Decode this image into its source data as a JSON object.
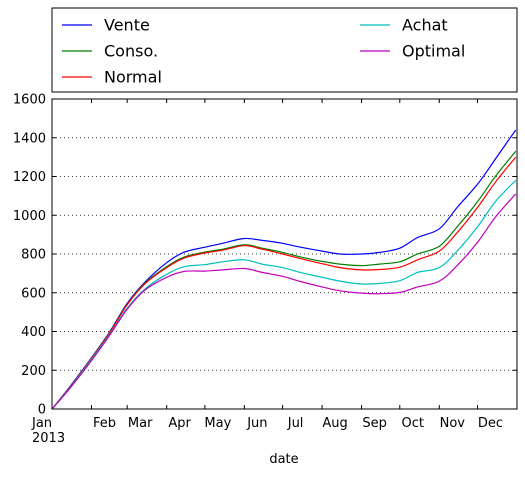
{
  "chart_data": {
    "type": "line",
    "title": "",
    "xlabel": "date",
    "ylabel": "",
    "ylim": [
      0,
      1600
    ],
    "yticks": [
      0,
      200,
      400,
      600,
      800,
      1000,
      1200,
      1400,
      1600
    ],
    "xlim": [
      "2013-01-01",
      "2014-01-01"
    ],
    "x_tick_labels": [
      {
        "date": "2013-01-01",
        "label": "Jan",
        "sublabel": "2013"
      },
      {
        "date": "2013-02-01",
        "label": "Feb"
      },
      {
        "date": "2013-03-01",
        "label": "Mar"
      },
      {
        "date": "2013-04-01",
        "label": "Apr"
      },
      {
        "date": "2013-05-01",
        "label": "May"
      },
      {
        "date": "2013-06-01",
        "label": "Jun"
      },
      {
        "date": "2013-07-01",
        "label": "Jul"
      },
      {
        "date": "2013-08-01",
        "label": "Aug"
      },
      {
        "date": "2013-09-01",
        "label": "Sep"
      },
      {
        "date": "2013-10-01",
        "label": "Oct"
      },
      {
        "date": "2013-11-01",
        "label": "Nov"
      },
      {
        "date": "2013-12-01",
        "label": "Dec"
      }
    ],
    "grid": "horizontal dotted",
    "legend_placement": "top, above plot, two columns",
    "x": [
      "2013-01-01",
      "2013-01-15",
      "2013-02-01",
      "2013-02-15",
      "2013-03-01",
      "2013-03-15",
      "2013-04-01",
      "2013-04-15",
      "2013-05-01",
      "2013-05-15",
      "2013-06-01",
      "2013-06-15",
      "2013-07-01",
      "2013-07-15",
      "2013-08-01",
      "2013-08-15",
      "2013-09-01",
      "2013-09-15",
      "2013-10-01",
      "2013-10-15",
      "2013-11-01",
      "2013-11-15",
      "2013-12-01",
      "2013-12-15",
      "2013-12-31"
    ],
    "series": [
      {
        "name": "Vente",
        "color": "#0000ff",
        "values": [
          0,
          115,
          265,
          395,
          545,
          655,
          755,
          810,
          835,
          855,
          880,
          870,
          855,
          835,
          815,
          800,
          800,
          808,
          830,
          885,
          930,
          1040,
          1160,
          1290,
          1440
        ]
      },
      {
        "name": "Conso.",
        "color": "#008000",
        "values": [
          0,
          112,
          262,
          392,
          540,
          650,
          735,
          785,
          810,
          825,
          848,
          830,
          808,
          785,
          762,
          748,
          740,
          748,
          760,
          800,
          840,
          940,
          1070,
          1200,
          1330
        ]
      },
      {
        "name": "Normal",
        "color": "#ff0000",
        "values": [
          0,
          110,
          260,
          390,
          538,
          646,
          730,
          780,
          805,
          820,
          843,
          825,
          800,
          776,
          750,
          730,
          718,
          720,
          732,
          770,
          815,
          910,
          1040,
          1170,
          1300
        ]
      },
      {
        "name": "Achat",
        "color": "#00bfbf",
        "values": [
          0,
          108,
          255,
          382,
          520,
          620,
          695,
          735,
          745,
          760,
          770,
          748,
          730,
          705,
          680,
          660,
          645,
          648,
          662,
          705,
          730,
          815,
          940,
          1070,
          1180
        ]
      },
      {
        "name": "Optimal",
        "color": "#bf00bf",
        "values": [
          0,
          106,
          250,
          378,
          515,
          614,
          680,
          710,
          712,
          718,
          725,
          705,
          685,
          658,
          630,
          610,
          598,
          595,
          602,
          630,
          660,
          740,
          860,
          990,
          1110
        ]
      }
    ]
  }
}
